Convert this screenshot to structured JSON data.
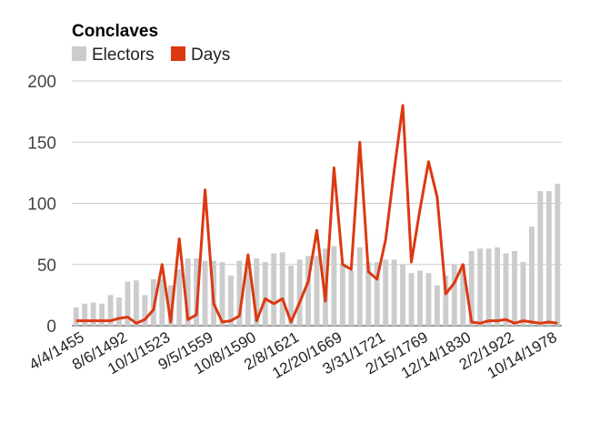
{
  "chart_data": {
    "type": "bar+line",
    "title": "Conclaves",
    "legend_position": "top-left",
    "grid": true,
    "ylim": [
      0,
      200
    ],
    "y_ticks": [
      0,
      50,
      100,
      150,
      200
    ],
    "x_tick_labels": [
      "4/4/1455",
      "8/6/1492",
      "10/1/1523",
      "9/5/1559",
      "10/8/1590",
      "2/8/1621",
      "12/20/1669",
      "3/31/1721",
      "2/15/1769",
      "12/14/1830",
      "2/2/1922",
      "10/14/1978"
    ],
    "series": [
      {
        "name": "Electors",
        "type": "bar",
        "color": "#cccccc",
        "values": [
          15,
          18,
          19,
          18,
          25,
          23,
          36,
          37,
          25,
          38,
          38,
          33,
          46,
          55,
          55,
          53,
          53,
          52,
          41,
          53,
          53,
          55,
          52,
          59,
          60,
          49,
          54,
          57,
          57,
          63,
          65,
          51,
          45,
          64,
          52,
          52,
          54,
          54,
          50,
          43,
          45,
          43,
          33,
          41,
          50,
          50,
          61,
          63,
          63,
          64,
          59,
          61,
          52,
          81,
          110,
          110,
          116
        ]
      },
      {
        "name": "Days",
        "type": "line",
        "color": "#dc3912",
        "values": [
          4,
          4,
          4,
          4,
          4,
          6,
          7,
          2,
          5,
          13,
          50,
          3,
          71,
          5,
          9,
          111,
          18,
          3,
          4,
          8,
          58,
          4,
          22,
          18,
          22,
          3,
          19,
          36,
          78,
          20,
          129,
          50,
          46,
          150,
          44,
          38,
          70,
          127,
          180,
          52,
          95,
          134,
          105,
          26,
          35,
          50,
          3,
          2,
          4,
          4,
          5,
          2,
          4,
          3,
          2,
          3,
          2
        ]
      }
    ]
  }
}
